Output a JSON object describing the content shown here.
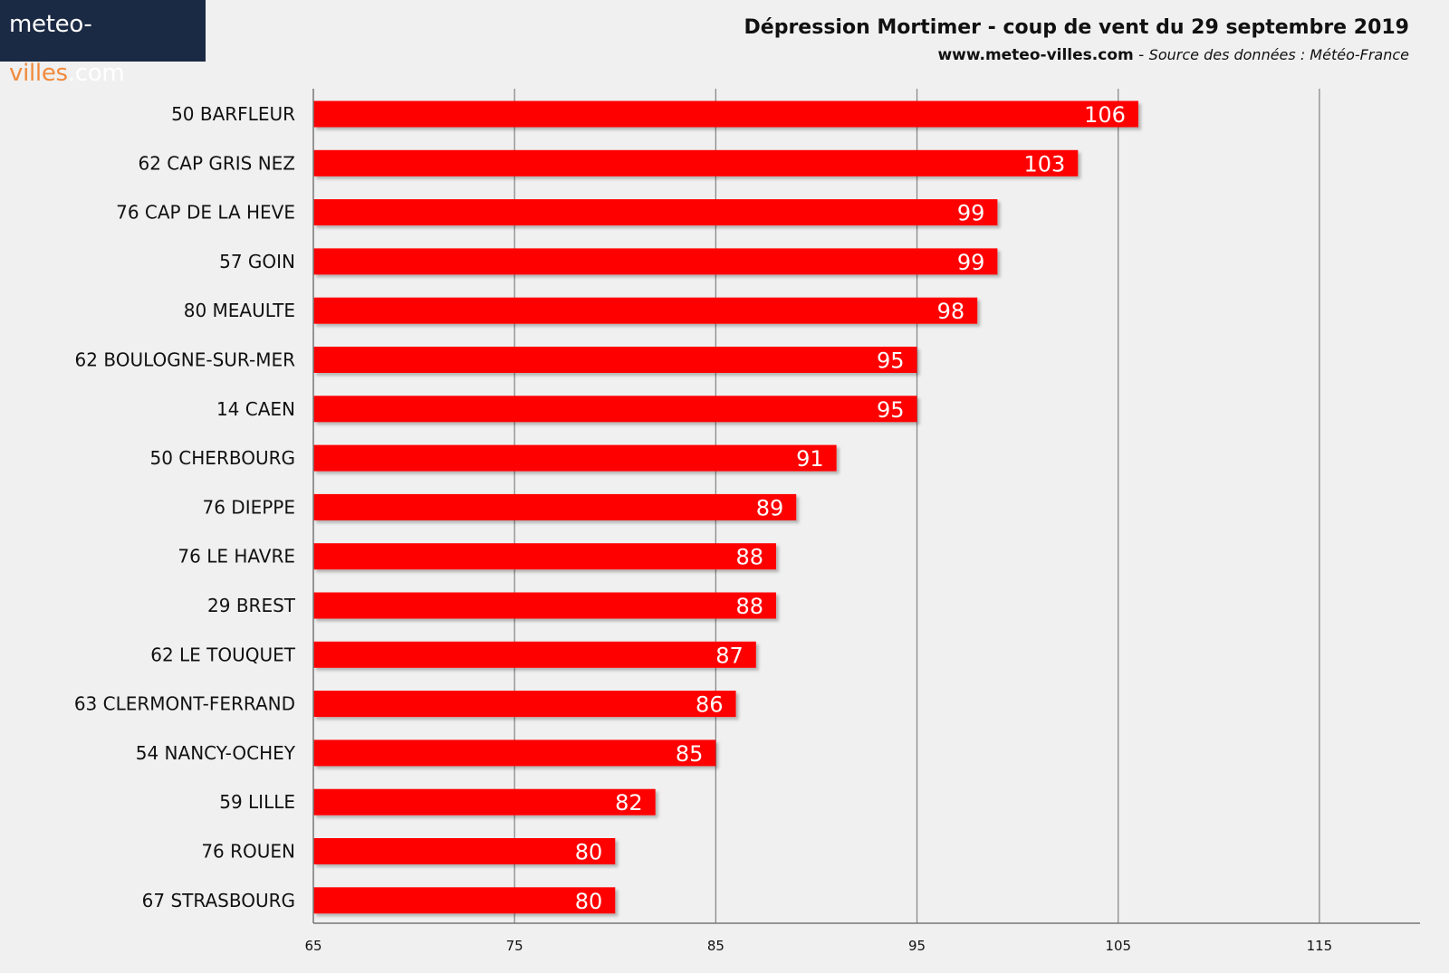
{
  "brand": {
    "logo_main": "meteo-",
    "logo_accent": "villes",
    "logo_suffix": ".com",
    "color_bg": "#1b2a44",
    "color_accent": "#f08a3c"
  },
  "header": {
    "title": "Dépression Mortimer - coup de vent du 29 septembre 2019",
    "site": "www.meteo-villes.com",
    "separator": " - ",
    "source": "Source des données : Météo-France"
  },
  "chart_data": {
    "type": "bar",
    "orientation": "horizontal",
    "categories": [
      "50 BARFLEUR",
      "62 CAP GRIS NEZ",
      "76 CAP DE LA HEVE",
      "57 GOIN",
      "80 MEAULTE",
      "62 BOULOGNE-SUR-MER",
      "14 CAEN",
      "50 CHERBOURG",
      "76 DIEPPE",
      "76 LE HAVRE",
      "29 BREST",
      "62 LE TOUQUET",
      "63 CLERMONT-FERRAND",
      "54 NANCY-OCHEY",
      "59 LILLE",
      "76 ROUEN",
      "67 STRASBOURG"
    ],
    "values": [
      106,
      103,
      99,
      99,
      98,
      95,
      95,
      91,
      89,
      88,
      88,
      87,
      86,
      85,
      82,
      80,
      80
    ],
    "xlim": [
      65,
      120
    ],
    "xticks": [
      65,
      75,
      85,
      95,
      105,
      115
    ],
    "grid": true,
    "bar_color": "#ff0000",
    "data_labels": true
  }
}
